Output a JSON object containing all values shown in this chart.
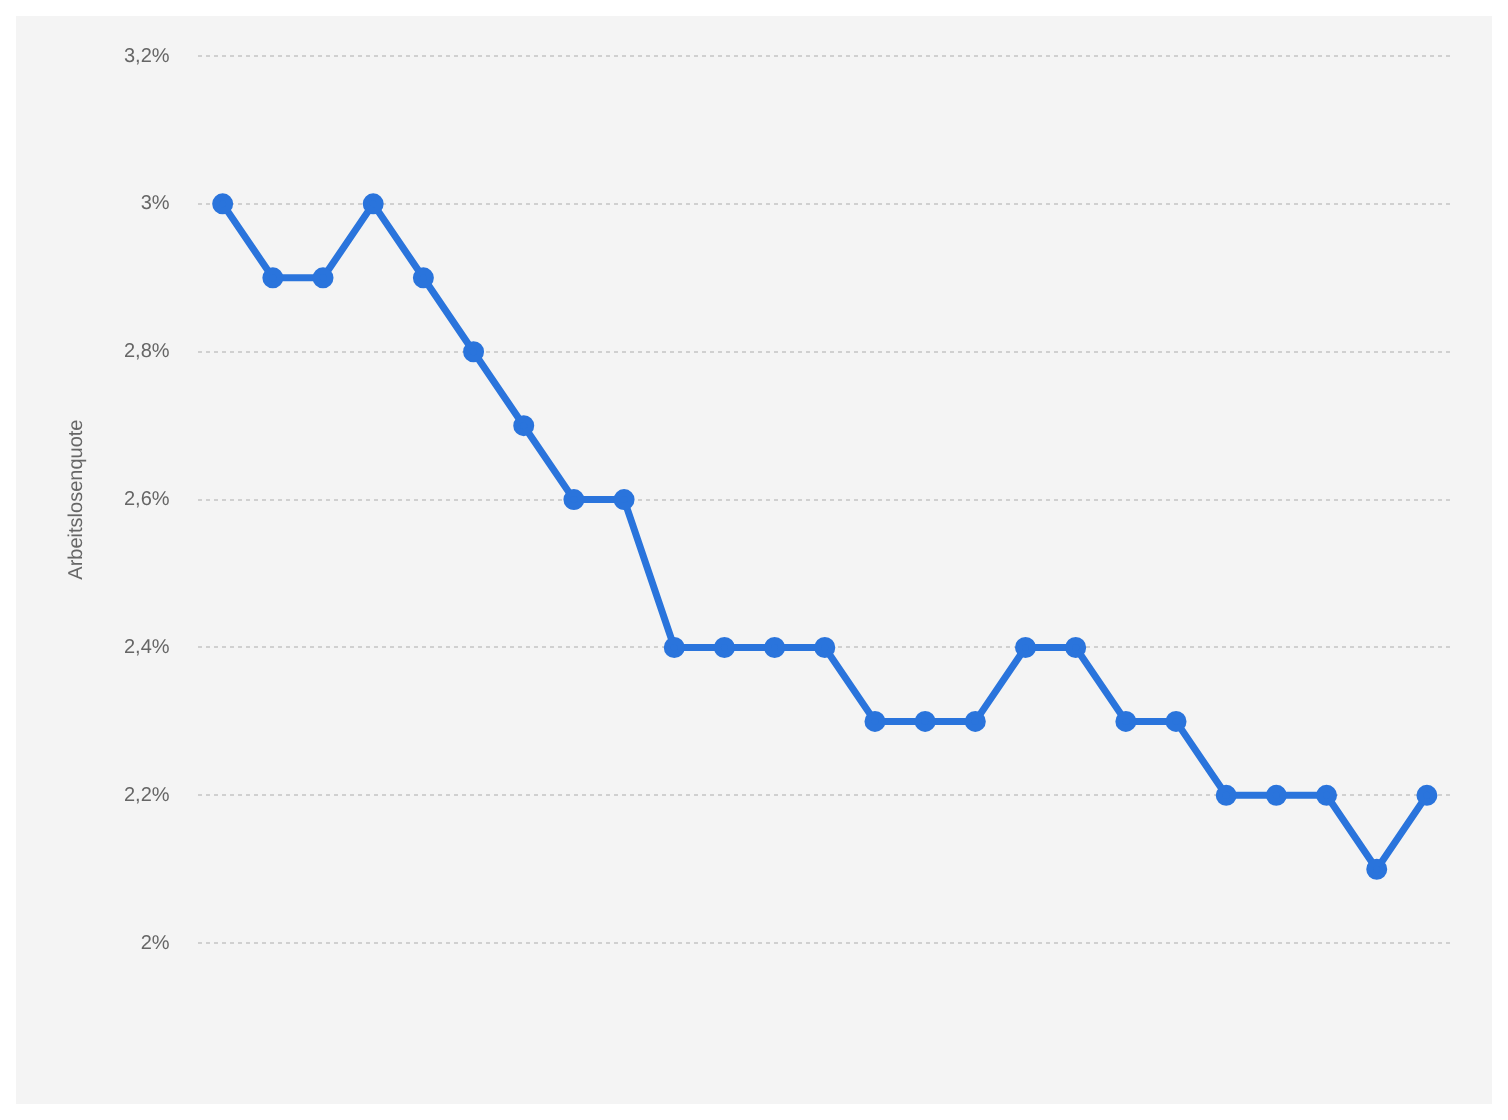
{
  "chart_data": {
    "type": "line",
    "ylabel": "Arbeitslosenquote",
    "categories": [
      null,
      null,
      null,
      null,
      null,
      null,
      null,
      null,
      null,
      null,
      null,
      null,
      null,
      null,
      null,
      null,
      null,
      null,
      null,
      null,
      null,
      null,
      null,
      null,
      null
    ],
    "series": [
      {
        "color": "#2a74dc",
        "values": [
          3.0,
          2.9,
          2.9,
          3.0,
          2.9,
          2.8,
          2.7,
          2.6,
          2.6,
          2.4,
          2.4,
          2.4,
          2.4,
          2.3,
          2.3,
          2.3,
          2.4,
          2.4,
          2.3,
          2.3,
          2.2,
          2.2,
          2.2,
          2.1,
          2.2
        ]
      }
    ],
    "ylim": [
      2,
      3.2
    ],
    "yticks": [
      {
        "value": 2,
        "label": "2%"
      },
      {
        "value": 2.2,
        "label": "2,2%"
      },
      {
        "value": 2.4,
        "label": "2,4%"
      },
      {
        "value": 2.6,
        "label": "2,6%"
      },
      {
        "value": 2.8,
        "label": "2,8%"
      },
      {
        "value": 3,
        "label": "3%"
      },
      {
        "value": 3.2,
        "label": "3,2%"
      }
    ],
    "grid": "y",
    "marker": "circle",
    "line_style": "solid",
    "legend": false
  }
}
